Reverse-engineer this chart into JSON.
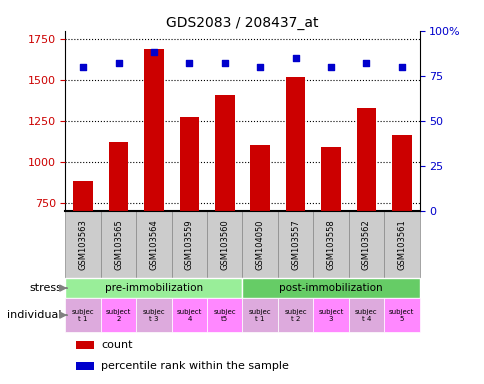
{
  "title": "GDS2083 / 208437_at",
  "samples": [
    "GSM103563",
    "GSM103565",
    "GSM103564",
    "GSM103559",
    "GSM103560",
    "GSM104050",
    "GSM103557",
    "GSM103558",
    "GSM103562",
    "GSM103561"
  ],
  "counts": [
    880,
    1120,
    1690,
    1270,
    1410,
    1100,
    1520,
    1090,
    1330,
    1160
  ],
  "percentile_ranks": [
    80,
    82,
    88,
    82,
    82,
    80,
    85,
    80,
    82,
    80
  ],
  "ylim_left": [
    700,
    1800
  ],
  "ylim_right": [
    0,
    100
  ],
  "yticks_left": [
    750,
    1000,
    1250,
    1500,
    1750
  ],
  "yticks_right": [
    0,
    25,
    50,
    75,
    100
  ],
  "bar_color": "#CC0000",
  "dot_color": "#0000CC",
  "stress_groups": [
    {
      "label": "pre-immobilization",
      "indices": [
        0,
        1,
        2,
        3,
        4
      ],
      "color": "#99EE99"
    },
    {
      "label": "post-immobilization",
      "indices": [
        5,
        6,
        7,
        8,
        9
      ],
      "color": "#66CC66"
    }
  ],
  "ind_labels": [
    "subjec\nt 1",
    "subject\n2",
    "subjec\nt 3",
    "subject\n4",
    "subjec\nt5",
    "subjec\nt 1",
    "subjec\nt 2",
    "subject\n3",
    "subjec\nt 4",
    "subject\n5"
  ],
  "ind_colors": [
    "#DDAADD",
    "#FF88FF",
    "#DDAADD",
    "#FF88FF",
    "#FF88FF",
    "#DDAADD",
    "#DDAADD",
    "#FF88FF",
    "#DDAADD",
    "#FF88FF"
  ],
  "stress_label": "stress",
  "individual_label": "individual",
  "legend_count_label": "count",
  "legend_pct_label": "percentile rank within the sample",
  "tick_color_left": "#CC0000",
  "tick_color_right": "#0000CC",
  "gsm_box_color": "#CCCCCC",
  "gsm_box_edge": "#888888"
}
